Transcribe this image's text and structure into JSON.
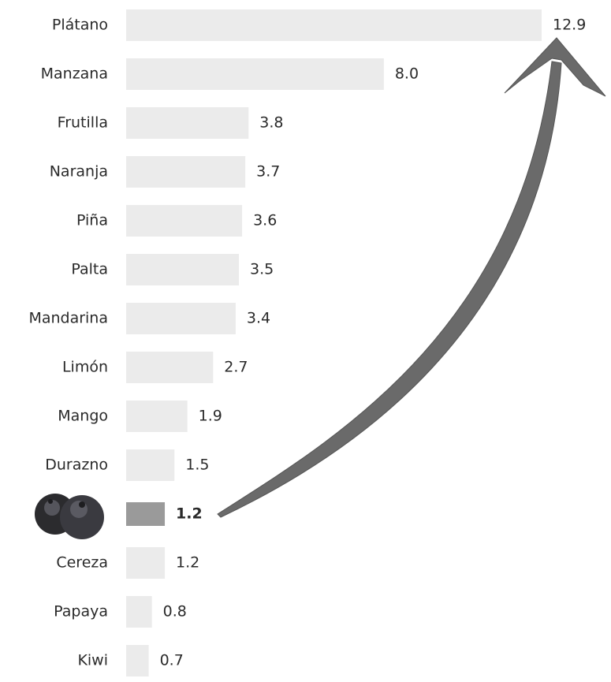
{
  "chart_data": {
    "type": "bar",
    "orientation": "horizontal",
    "categories": [
      "Plátano",
      "Manzana",
      "Frutilla",
      "Naranja",
      "Piña",
      "Palta",
      "Mandarina",
      "Limón",
      "Mango",
      "Durazno",
      null,
      "Cereza",
      "Papaya",
      "Kiwi"
    ],
    "values": [
      12.9,
      8.0,
      3.8,
      3.7,
      3.6,
      3.5,
      3.4,
      2.7,
      1.9,
      1.5,
      1.2,
      1.2,
      0.8,
      0.7
    ],
    "value_labels": [
      "12.9",
      "8.0",
      "3.8",
      "3.7",
      "3.6",
      "3.5",
      "3.4",
      "2.7",
      "1.9",
      "1.5",
      "1.2",
      "1.2",
      "0.8",
      "0.7"
    ],
    "colors": [
      "#ebebeb",
      "#ebebeb",
      "#ebebeb",
      "#ebebeb",
      "#ebebeb",
      "#ebebeb",
      "#ebebeb",
      "#ebebeb",
      "#ebebeb",
      "#ebebeb",
      "#9a9a9a",
      "#ebebeb",
      "#ebebeb",
      "#ebebeb"
    ]
  }
}
